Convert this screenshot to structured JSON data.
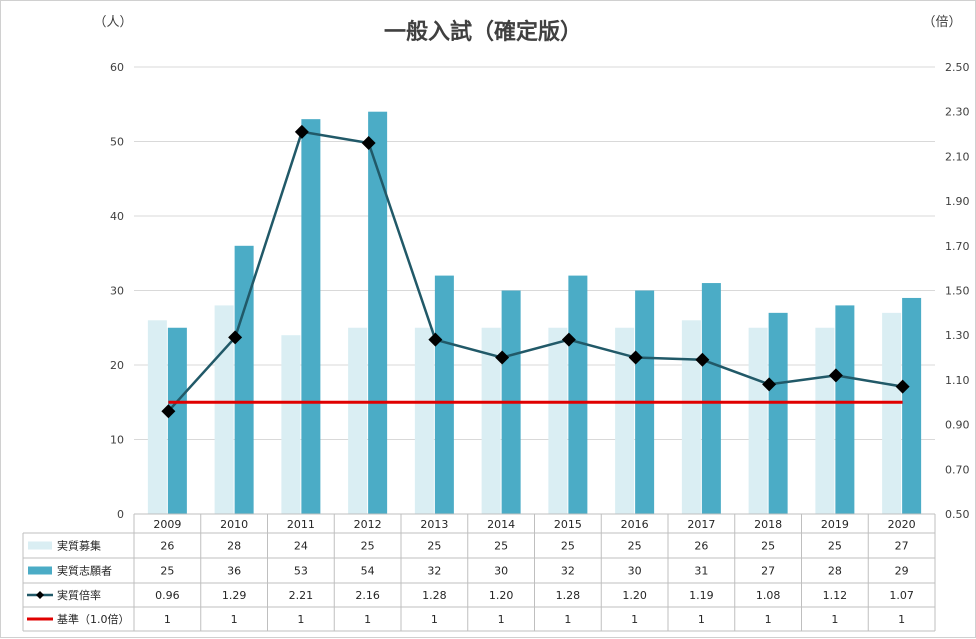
{
  "chart_data": {
    "type": "bar",
    "title": "一般入試（確定版）",
    "left_unit": "（人）",
    "right_unit": "（倍）",
    "categories": [
      "2009",
      "2010",
      "2011",
      "2012",
      "2013",
      "2014",
      "2015",
      "2016",
      "2017",
      "2018",
      "2019",
      "2020"
    ],
    "ylim": [
      0,
      60
    ],
    "y_ticks": [
      "0",
      "10",
      "20",
      "30",
      "40",
      "50",
      "60"
    ],
    "y2lim": [
      0.5,
      2.5
    ],
    "y2_ticks": [
      "0.50",
      "0.70",
      "0.90",
      "1.10",
      "1.30",
      "1.50",
      "1.70",
      "1.90",
      "2.10",
      "2.30",
      "2.50"
    ],
    "grid": true,
    "series": [
      {
        "name": "実質募集",
        "type": "bar",
        "axis": "left",
        "color": "#daeef3",
        "values": [
          26,
          28,
          24,
          25,
          25,
          25,
          25,
          25,
          26,
          25,
          25,
          27
        ],
        "labels": [
          "26",
          "28",
          "24",
          "25",
          "25",
          "25",
          "25",
          "25",
          "26",
          "25",
          "25",
          "27"
        ]
      },
      {
        "name": "実質志願者",
        "type": "bar",
        "axis": "left",
        "color": "#4bacc6",
        "values": [
          25,
          36,
          53,
          54,
          32,
          30,
          32,
          30,
          31,
          27,
          28,
          29
        ],
        "labels": [
          "25",
          "36",
          "53",
          "54",
          "32",
          "30",
          "32",
          "30",
          "31",
          "27",
          "28",
          "29"
        ]
      },
      {
        "name": "実質倍率",
        "type": "line",
        "axis": "right",
        "color": "#215968",
        "marker": "diamond",
        "values": [
          0.96,
          1.29,
          2.21,
          2.16,
          1.28,
          1.2,
          1.28,
          1.2,
          1.19,
          1.08,
          1.12,
          1.07
        ],
        "labels": [
          "0.96",
          "1.29",
          "2.21",
          "2.16",
          "1.28",
          "1.20",
          "1.28",
          "1.20",
          "1.19",
          "1.08",
          "1.12",
          "1.07"
        ]
      },
      {
        "name": "基準（1.0倍）",
        "type": "line",
        "axis": "right",
        "color": "#e00000",
        "values": [
          1,
          1,
          1,
          1,
          1,
          1,
          1,
          1,
          1,
          1,
          1,
          1
        ],
        "labels": [
          "1",
          "1",
          "1",
          "1",
          "1",
          "1",
          "1",
          "1",
          "1",
          "1",
          "1",
          "1"
        ]
      }
    ],
    "legend": "data-table"
  }
}
